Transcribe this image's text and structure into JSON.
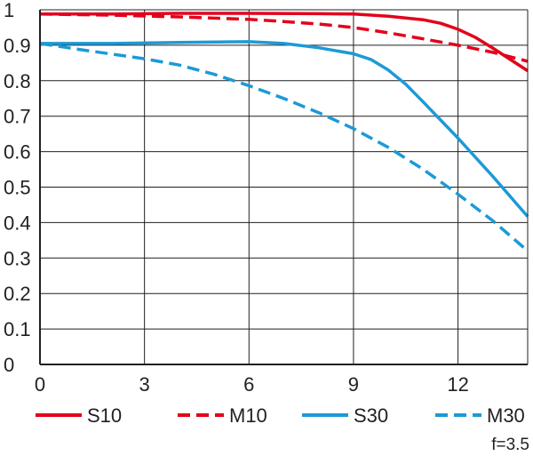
{
  "chart_data": {
    "type": "line",
    "title": "",
    "xlabel": "",
    "ylabel": "",
    "xlim": [
      0,
      14
    ],
    "ylim": [
      0,
      1
    ],
    "x_ticks": [
      "0",
      "3",
      "6",
      "9",
      "12"
    ],
    "y_ticks": [
      "0",
      "0.1",
      "0.2",
      "0.3",
      "0.4",
      "0.5",
      "0.6",
      "0.7",
      "0.8",
      "0.9",
      "1"
    ],
    "grid": true,
    "legend_position": "bottom",
    "annotation": "f=3.5",
    "series": [
      {
        "name": "S10",
        "color": "#e3001b",
        "dash": "solid",
        "x": [
          0,
          2,
          4,
          6,
          8,
          9,
          10,
          11,
          11.5,
          12,
          12.5,
          13,
          13.5,
          14
        ],
        "y": [
          0.988,
          0.988,
          0.99,
          0.99,
          0.989,
          0.988,
          0.982,
          0.972,
          0.962,
          0.945,
          0.922,
          0.892,
          0.86,
          0.828
        ]
      },
      {
        "name": "M10",
        "color": "#e3001b",
        "dash": "dashed",
        "x": [
          0,
          2,
          4,
          6,
          7,
          8,
          9,
          10,
          11,
          12,
          13,
          14
        ],
        "y": [
          0.988,
          0.985,
          0.98,
          0.973,
          0.967,
          0.96,
          0.95,
          0.935,
          0.918,
          0.9,
          0.88,
          0.855
        ]
      },
      {
        "name": "S30",
        "color": "#1c9ad6",
        "dash": "solid",
        "x": [
          0,
          2,
          4,
          6,
          7,
          8,
          9,
          9.5,
          10,
          10.5,
          11,
          12,
          13,
          14
        ],
        "y": [
          0.905,
          0.905,
          0.908,
          0.91,
          0.905,
          0.893,
          0.876,
          0.86,
          0.83,
          0.79,
          0.74,
          0.638,
          0.53,
          0.417
        ]
      },
      {
        "name": "M30",
        "color": "#1c9ad6",
        "dash": "dashed",
        "x": [
          0,
          1,
          2,
          3,
          4,
          5,
          6,
          7,
          8,
          9,
          10,
          11,
          12,
          13,
          14
        ],
        "y": [
          0.905,
          0.89,
          0.876,
          0.862,
          0.844,
          0.818,
          0.786,
          0.75,
          0.71,
          0.665,
          0.612,
          0.55,
          0.48,
          0.405,
          0.32
        ]
      }
    ]
  }
}
